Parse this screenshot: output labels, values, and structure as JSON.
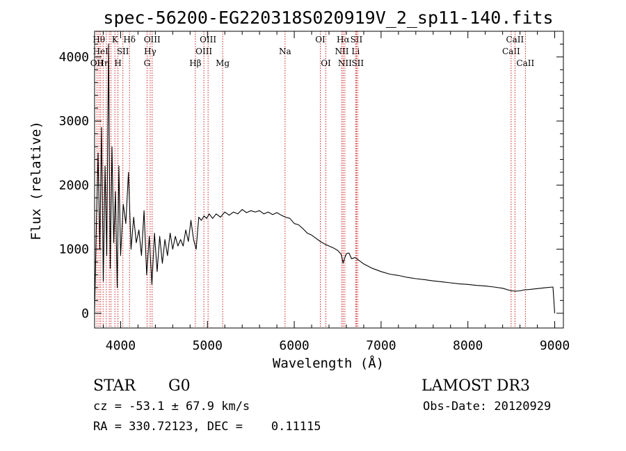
{
  "chart_data": {
    "type": "line",
    "title": "spec-56200-EG220318S020919V_2_sp11-140.fits",
    "xlabel": "Wavelength (Å)",
    "ylabel": "Flux (relative)",
    "xlim": [
      3700,
      9100
    ],
    "ylim": [
      -230,
      4400
    ],
    "xticks": [
      4000,
      5000,
      6000,
      7000,
      8000,
      9000
    ],
    "yticks": [
      0,
      1000,
      2000,
      3000,
      4000
    ],
    "spectrum": {
      "x": [
        3700,
        3720,
        3740,
        3760,
        3780,
        3800,
        3820,
        3840,
        3860,
        3880,
        3900,
        3920,
        3940,
        3960,
        3980,
        4000,
        4030,
        4060,
        4090,
        4120,
        4150,
        4180,
        4210,
        4240,
        4270,
        4300,
        4330,
        4360,
        4390,
        4420,
        4450,
        4480,
        4510,
        4540,
        4570,
        4600,
        4630,
        4660,
        4690,
        4720,
        4750,
        4780,
        4810,
        4840,
        4870,
        4900,
        4930,
        4960,
        4990,
        5020,
        5060,
        5100,
        5150,
        5200,
        5250,
        5300,
        5350,
        5400,
        5450,
        5500,
        5550,
        5600,
        5650,
        5700,
        5750,
        5800,
        5850,
        5900,
        5950,
        6000,
        6050,
        6100,
        6150,
        6200,
        6250,
        6300,
        6350,
        6400,
        6450,
        6500,
        6540,
        6563,
        6580,
        6600,
        6630,
        6660,
        6700,
        6750,
        6800,
        6900,
        7000,
        7100,
        7200,
        7300,
        7400,
        7500,
        7600,
        7700,
        7800,
        7900,
        8000,
        8100,
        8200,
        8300,
        8400,
        8500,
        8550,
        8600,
        8650,
        8700,
        8800,
        8900,
        8980,
        9000
      ],
      "y": [
        0,
        1350,
        2500,
        1000,
        2900,
        500,
        2300,
        900,
        4200,
        700,
        2600,
        1100,
        1900,
        400,
        2300,
        900,
        1700,
        1400,
        2200,
        1000,
        1500,
        1100,
        1300,
        900,
        1600,
        600,
        1200,
        450,
        1250,
        650,
        1200,
        780,
        1150,
        900,
        1250,
        1000,
        1200,
        1050,
        1150,
        1050,
        1300,
        1120,
        1450,
        1150,
        1000,
        1500,
        1450,
        1520,
        1480,
        1550,
        1480,
        1550,
        1500,
        1580,
        1530,
        1580,
        1550,
        1620,
        1570,
        1600,
        1580,
        1600,
        1550,
        1580,
        1540,
        1570,
        1530,
        1500,
        1480,
        1400,
        1380,
        1320,
        1250,
        1220,
        1170,
        1120,
        1080,
        1050,
        1020,
        980,
        920,
        780,
        860,
        930,
        940,
        850,
        870,
        820,
        770,
        700,
        650,
        610,
        590,
        560,
        540,
        525,
        505,
        490,
        475,
        460,
        450,
        435,
        425,
        410,
        390,
        350,
        345,
        350,
        365,
        370,
        385,
        400,
        410,
        0
      ]
    },
    "emission_lines": [
      {
        "wavelength": 3727,
        "label": "OII",
        "row": 3
      },
      {
        "wavelength": 3750,
        "label": "Hθ",
        "row": 1
      },
      {
        "wavelength": 3770,
        "label": "HeI",
        "row": 2
      },
      {
        "wavelength": 3798,
        "label": "Hη",
        "row": 3
      },
      {
        "wavelength": 3835,
        "label": "",
        "row": 0
      },
      {
        "wavelength": 3869,
        "label": "",
        "row": 0
      },
      {
        "wavelength": 3889,
        "label": "",
        "row": 0
      },
      {
        "wavelength": 3934,
        "label": "K",
        "row": 1
      },
      {
        "wavelength": 3969,
        "label": "H",
        "row": 3
      },
      {
        "wavelength": 4026,
        "label": "SII",
        "row": 2
      },
      {
        "wavelength": 4102,
        "label": "Hδ",
        "row": 1
      },
      {
        "wavelength": 4304,
        "label": "G",
        "row": 3
      },
      {
        "wavelength": 4340,
        "label": "Hγ",
        "row": 2
      },
      {
        "wavelength": 4363,
        "label": "OIII",
        "row": 1
      },
      {
        "wavelength": 4861,
        "label": "Hβ",
        "row": 3
      },
      {
        "wavelength": 4959,
        "label": "OIII",
        "row": 2
      },
      {
        "wavelength": 5007,
        "label": "OIII",
        "row": 1
      },
      {
        "wavelength": 5175,
        "label": "Mg",
        "row": 3
      },
      {
        "wavelength": 5894,
        "label": "Na",
        "row": 2
      },
      {
        "wavelength": 6300,
        "label": "OI",
        "row": 1
      },
      {
        "wavelength": 6364,
        "label": "OI",
        "row": 3
      },
      {
        "wavelength": 6548,
        "label": "NII",
        "row": 2
      },
      {
        "wavelength": 6563,
        "label": "Hα",
        "row": 1
      },
      {
        "wavelength": 6583,
        "label": "NII",
        "row": 3
      },
      {
        "wavelength": 6707,
        "label": "Li",
        "row": 2
      },
      {
        "wavelength": 6716,
        "label": "SII",
        "row": 1
      },
      {
        "wavelength": 6731,
        "label": "SII",
        "row": 3
      },
      {
        "wavelength": 8498,
        "label": "CaII",
        "row": 2
      },
      {
        "wavelength": 8542,
        "label": "CaII",
        "row": 1
      },
      {
        "wavelength": 8662,
        "label": "CaII",
        "row": 3
      }
    ],
    "colors": {
      "spectrum": "#000000",
      "emission_line": "#cc0000",
      "axes": "#000000"
    }
  },
  "info": {
    "object_class": "STAR",
    "subclass": "G0",
    "survey": "LAMOST DR3",
    "cz": "cz = -53.1 ± 67.9 km/s",
    "obs_date": "Obs-Date: 20120929",
    "coords": "RA = 330.72123, DEC =    0.11115"
  }
}
